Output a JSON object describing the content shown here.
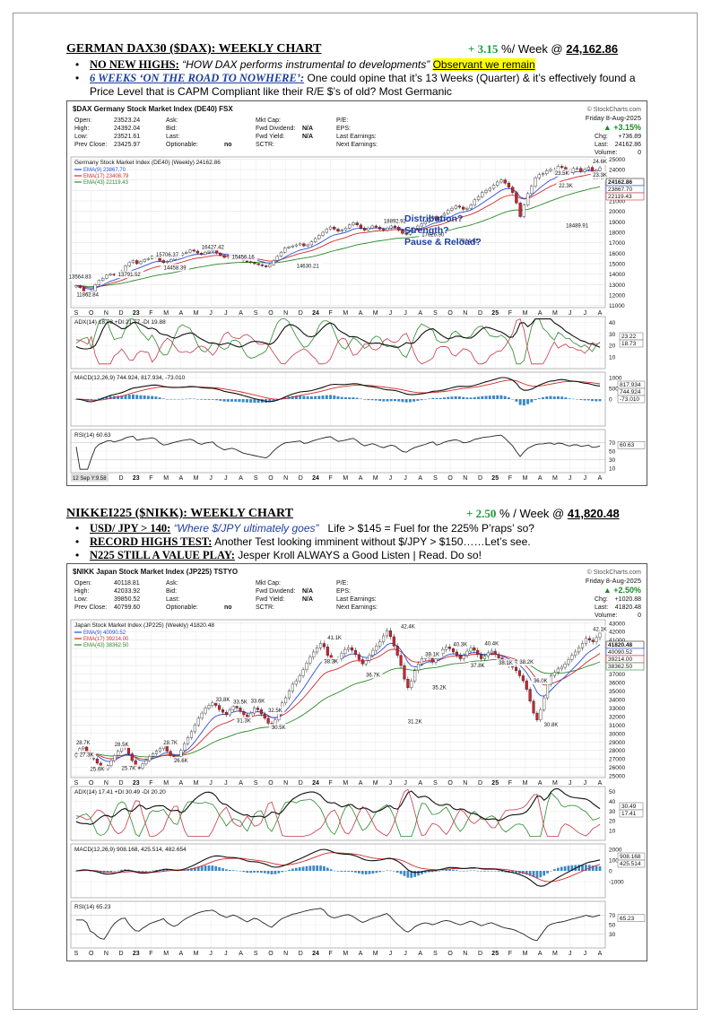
{
  "dax": {
    "title": "GERMAN DAX30 ($DAX): WEEKLY CHART",
    "change": "+ 3.15",
    "change_unit": "%/ Week @",
    "level": "24,162.86",
    "b1_label": "NO NEW HIGHS:",
    "b1_quote": "“HOW DAX performs instrumental to developments”",
    "b1_hl": "Observant we remain",
    "b2_label": "6 WEEKS ‘ON THE ROAD TO NOWHERE’:",
    "b2_text": "One could opine that it’s 13 Weeks (Quarter) & it’s effectively found a Price Level that is CAPM Compliant like their R/E $’s of old? Most Germanic"
  },
  "nikk": {
    "title": "NIKKEI225 ($NIKK): WEEKLY CHART",
    "change": "+ 2.50",
    "change_unit": "% / Week @",
    "level": "41,820.48",
    "b1_label": "USD/ JPY > 140:",
    "b1_quote": "“Where $/JPY ultimately goes”",
    "b1_text": "Life > $145 = Fuel for the 225% P’raps’ so?",
    "b2_label": "RECORD HIGHS TEST:",
    "b2_text": "Another Test looking imminent without $/JPY > $150……Let’s see.",
    "b3_label": "N225 STILL A VALUE PLAY:",
    "b3_text": "Jesper Kroll ALWAYS a Good Listen | Read. Do so!"
  },
  "chart_data": [
    {
      "type": "candlestick",
      "symbol_line": "$DAX Germany Stock Market Index (DE40) FSX",
      "source": "© StockCharts.com",
      "date": "Friday 8-Aug-2025",
      "info_left": [
        "Open:",
        "23523.24",
        "High:",
        "24392.04",
        "Low:",
        "23521.61",
        "Prev Close:",
        "23425.97"
      ],
      "info_mid": [
        "Ask:",
        "Bid:",
        "Last:",
        "Optionable:",
        "no"
      ],
      "info_right": [
        "Mkt Cap:",
        "Fwd Dividend:",
        "N/A",
        "Fwd Yield:",
        "N/A",
        "SCTR:"
      ],
      "info_right2": [
        "P/E:",
        "EPS:",
        "Last Earnings:",
        "Next Earnings:"
      ],
      "chg_pct": "▲ +3.15%",
      "chg": "Chg:",
      "chg_val": "+736.89",
      "last": "Last:",
      "last_val": "24162.86",
      "volume": "Volume:",
      "volume_val": "0",
      "legend_title": "Germany Stock Market Index (DE40) (Weekly) 24162.86",
      "legend": [
        "EMA(9) 23867.70",
        "EMA(17) 23408.79",
        "EMA(43) 22119.43"
      ],
      "legend_colors": [
        "#2b4fd8",
        "#d42a2a",
        "#2a8a2a"
      ],
      "annotation": [
        "Distribution?",
        "Strength?",
        "Pause & Reload?"
      ],
      "x_labels": [
        "S",
        "O",
        "N",
        "D",
        "23",
        "F",
        "M",
        "A",
        "M",
        "J",
        "J",
        "A",
        "S",
        "O",
        "N",
        "D",
        "24",
        "F",
        "M",
        "A",
        "M",
        "J",
        "J",
        "A",
        "S",
        "O",
        "N",
        "D",
        "25",
        "F",
        "M",
        "A",
        "M",
        "J",
        "J",
        "A"
      ],
      "y_ticks": [
        11000,
        12000,
        13000,
        14000,
        15000,
        16000,
        17000,
        18000,
        19000,
        20000,
        21000,
        22000,
        23000,
        24000,
        25000
      ],
      "y_range": [
        10800,
        25200
      ],
      "price_labels": [
        {
          "text": "13564.83",
          "x": 1,
          "v": 13564.83
        },
        {
          "text": "11862.84",
          "x": 3,
          "v": 11862.84
        },
        {
          "text": "13791.52",
          "x": 14,
          "v": 13791.52
        },
        {
          "text": "15706.37",
          "x": 24,
          "v": 15706.37
        },
        {
          "text": "14458.39",
          "x": 26,
          "v": 14458.39
        },
        {
          "text": "16427.42",
          "x": 36,
          "v": 16427.42
        },
        {
          "text": "15456.16",
          "x": 44,
          "v": 15456.16
        },
        {
          "text": "14630.21",
          "x": 61,
          "v": 14630.21
        },
        {
          "text": "18892.92",
          "x": 84,
          "v": 18892.92
        },
        {
          "text": "17626.90",
          "x": 94,
          "v": 17626.9
        },
        {
          "text": "17024.82",
          "x": 103,
          "v": 17024.82
        },
        {
          "text": "23.5K",
          "x": 128,
          "v": 23500
        },
        {
          "text": "22.3K",
          "x": 129,
          "v": 22300
        },
        {
          "text": "18489.91",
          "x": 132,
          "v": 18489.91
        },
        {
          "text": "24.6K",
          "x": 143,
          "v": 24600
        },
        {
          "text": "23.1K",
          "x": 142,
          "v": 23100
        },
        {
          "text": "23.3K",
          "x": 149,
          "v": 23300
        }
      ],
      "right_labels": [
        "24162.86",
        "23867.70",
        "22119.43"
      ],
      "adx_label": "ADX(14) 18.73 +DI 21.77 -DI 19.88",
      "adx_ticks": [
        40,
        30,
        20,
        10
      ],
      "adx_right": [
        "23.22",
        "18.73"
      ],
      "macd_label": "MACD(12,26,9) 744.924, 817.934, -73.010",
      "macd_ticks": [
        1000,
        500,
        0
      ],
      "macd_right": [
        "817.934",
        "744.924",
        "-73.010"
      ],
      "rsi_label": "RSI(14) 60.63",
      "rsi_ticks": [
        70,
        50,
        30,
        10
      ],
      "rsi_right": "60.63",
      "footer_date": "12 Sep Y:9.58",
      "candles": [
        12900,
        12700,
        12300,
        12000,
        12400,
        13000,
        13400,
        13600,
        13900,
        14000,
        13900,
        14100,
        14300,
        14800,
        15100,
        15300,
        15000,
        15200,
        15400,
        15500,
        15700,
        15600,
        15300,
        15100,
        15200,
        15400,
        15600,
        15800,
        16000,
        16100,
        16300,
        16200,
        16000,
        15900,
        16100,
        16200,
        16300,
        16000,
        15800,
        15600,
        15700,
        15800,
        15700,
        15500,
        15300,
        15200,
        15100,
        15000,
        14900,
        14800,
        14700,
        14900,
        15300,
        15700,
        16100,
        16500,
        16600,
        16700,
        16800,
        16900,
        16700,
        16800,
        17100,
        17400,
        17700,
        18000,
        18300,
        18500,
        18300,
        18100,
        18200,
        18400,
        18700,
        18900,
        18700,
        18400,
        18200,
        18400,
        18600,
        18500,
        18300,
        18200,
        18400,
        18600,
        18500,
        18200,
        17900,
        17800,
        18100,
        18400,
        18600,
        18800,
        19000,
        19300,
        19500,
        19200,
        19400,
        19800,
        20100,
        20300,
        20500,
        20400,
        20200,
        20300,
        20600,
        21100,
        21400,
        21800,
        22000,
        22200,
        22500,
        22800,
        23000,
        22700,
        22300,
        21800,
        20800,
        19500,
        20600,
        21700,
        22400,
        23200,
        23500,
        23600,
        23900,
        24000,
        23700,
        24300,
        24200,
        23900,
        23700,
        24100,
        24100,
        23800,
        24000,
        24200,
        23800,
        23900,
        24162
      ]
    },
    {
      "type": "candlestick",
      "symbol_line": "$NIKK Japan Stock Market Index (JP225) TSTYO",
      "source": "© StockCharts.com",
      "date": "Friday 8-Aug-2025",
      "info_left": [
        "Open:",
        "40118.81",
        "High:",
        "42033.92",
        "Low:",
        "39850.52",
        "Prev Close:",
        "40799.60"
      ],
      "info_mid": [
        "Ask:",
        "Bid:",
        "Last:",
        "Optionable:",
        "no"
      ],
      "info_right": [
        "Mkt Cap:",
        "Fwd Dividend:",
        "N/A",
        "Fwd Yield:",
        "N/A",
        "SCTR:"
      ],
      "info_right2": [
        "P/E:",
        "EPS:",
        "Last Earnings:",
        "Next Earnings:"
      ],
      "chg_pct": "▲ +2.50%",
      "chg": "Chg:",
      "chg_val": "+1020.88",
      "last": "Last:",
      "last_val": "41820.48",
      "volume": "Volume:",
      "volume_val": "0",
      "legend_title": "Japan Stock Market Index (JP225) (Weekly) 41820.48",
      "legend": [
        "EMA(9) 40090.52",
        "EMA(17) 39214.00",
        "EMA(43) 38362.50"
      ],
      "legend_colors": [
        "#2b4fd8",
        "#d42a2a",
        "#2a8a2a"
      ],
      "x_labels": [
        "S",
        "O",
        "N",
        "D",
        "23",
        "F",
        "M",
        "A",
        "M",
        "J",
        "J",
        "A",
        "S",
        "O",
        "N",
        "D",
        "24",
        "F",
        "M",
        "A",
        "M",
        "J",
        "J",
        "A",
        "S",
        "O",
        "N",
        "D",
        "25",
        "F",
        "M",
        "A",
        "M",
        "J",
        "J",
        "A"
      ],
      "y_ticks": [
        25000,
        26000,
        27000,
        28000,
        29000,
        30000,
        31000,
        32000,
        33000,
        34000,
        35000,
        36000,
        37000,
        38000,
        39000,
        40000,
        41000,
        42000,
        43000
      ],
      "y_range": [
        24800,
        43400
      ],
      "price_labels": [
        {
          "text": "28.7K",
          "x": 2,
          "v": 28700
        },
        {
          "text": "27.3K",
          "x": 3,
          "v": 27300
        },
        {
          "text": "25.6K",
          "x": 6,
          "v": 25600
        },
        {
          "text": "28.5K",
          "x": 13,
          "v": 28500
        },
        {
          "text": "25.7K",
          "x": 15,
          "v": 25700
        },
        {
          "text": "28.7K",
          "x": 27,
          "v": 28700
        },
        {
          "text": "26.6K",
          "x": 30,
          "v": 26600
        },
        {
          "text": "33.8K",
          "x": 42,
          "v": 33800
        },
        {
          "text": "33.5K",
          "x": 47,
          "v": 33500
        },
        {
          "text": "33.6K",
          "x": 52,
          "v": 33600
        },
        {
          "text": "32.5K",
          "x": 57,
          "v": 32500
        },
        {
          "text": "31.3K",
          "x": 48,
          "v": 31300
        },
        {
          "text": "30.5K",
          "x": 58,
          "v": 30500
        },
        {
          "text": "41.1K",
          "x": 74,
          "v": 41100
        },
        {
          "text": "38.3K",
          "x": 73,
          "v": 38300
        },
        {
          "text": "36.7K",
          "x": 85,
          "v": 36700
        },
        {
          "text": "42.4K",
          "x": 95,
          "v": 42400
        },
        {
          "text": "39.1K",
          "x": 102,
          "v": 39100
        },
        {
          "text": "40.3K",
          "x": 110,
          "v": 40300
        },
        {
          "text": "35.2K",
          "x": 104,
          "v": 35200
        },
        {
          "text": "31.2K",
          "x": 97,
          "v": 31200
        },
        {
          "text": "40.4K",
          "x": 119,
          "v": 40400
        },
        {
          "text": "37.8K",
          "x": 115,
          "v": 37800
        },
        {
          "text": "38.1K",
          "x": 123,
          "v": 38100
        },
        {
          "text": "38.2K",
          "x": 129,
          "v": 38200
        },
        {
          "text": "36.0K",
          "x": 133,
          "v": 36000
        },
        {
          "text": "30.8K",
          "x": 136,
          "v": 30800
        },
        {
          "text": "42.1K",
          "x": 151,
          "v": 42100
        }
      ],
      "right_labels": [
        "41820.48",
        "40090.52",
        "39214.00",
        "38362.50"
      ],
      "adx_label": "ADX(14) 17.41 +DI 30.49 -DI 20.20",
      "adx_ticks": [
        50,
        40,
        30,
        20,
        10
      ],
      "adx_right": [
        "30.49",
        "17.41"
      ],
      "macd_label": "MACD(12,26,9) 908.168, 425.514, 482.654",
      "macd_ticks": [
        2000,
        1000,
        0,
        -1000
      ],
      "macd_right": [
        "908.168",
        "425.514"
      ],
      "rsi_label": "RSI(14) 65.23",
      "rsi_ticks": [
        70,
        50,
        30
      ],
      "rsi_right": "65.23",
      "candles": [
        27600,
        28200,
        28400,
        27800,
        27200,
        27000,
        26500,
        26000,
        25800,
        26200,
        26800,
        27400,
        27900,
        28300,
        28400,
        27600,
        26800,
        26000,
        25900,
        26400,
        26800,
        27300,
        27600,
        27900,
        28200,
        28600,
        27900,
        27400,
        27000,
        27300,
        28000,
        28800,
        29500,
        30200,
        31000,
        31800,
        32400,
        33000,
        33300,
        33600,
        33300,
        32800,
        32500,
        32200,
        32800,
        33200,
        33000,
        32600,
        32200,
        31800,
        32400,
        33000,
        32800,
        32300,
        31800,
        31200,
        30800,
        31600,
        32600,
        33600,
        34200,
        35000,
        35800,
        36200,
        36800,
        37500,
        38300,
        39000,
        39600,
        40100,
        40600,
        40200,
        39200,
        38600,
        38400,
        38800,
        39400,
        39900,
        40100,
        39800,
        39300,
        38700,
        38200,
        38600,
        39200,
        39800,
        40300,
        40800,
        41500,
        42100,
        41400,
        40300,
        39200,
        38000,
        36400,
        35400,
        36200,
        37400,
        38200,
        38800,
        39200,
        38900,
        38400,
        38800,
        39400,
        39900,
        40200,
        40000,
        39600,
        39200,
        38800,
        39200,
        39700,
        40100,
        39800,
        39300,
        38800,
        39100,
        39500,
        39700,
        39300,
        38900,
        38500,
        38200,
        38000,
        37800,
        37400,
        36800,
        36200,
        35200,
        33800,
        32400,
        31600,
        32800,
        34200,
        35800,
        36800,
        37200,
        37600,
        37800,
        38200,
        38700,
        39200,
        39600,
        40100,
        40600,
        41200,
        41000,
        40800,
        41300,
        41820
      ]
    }
  ]
}
